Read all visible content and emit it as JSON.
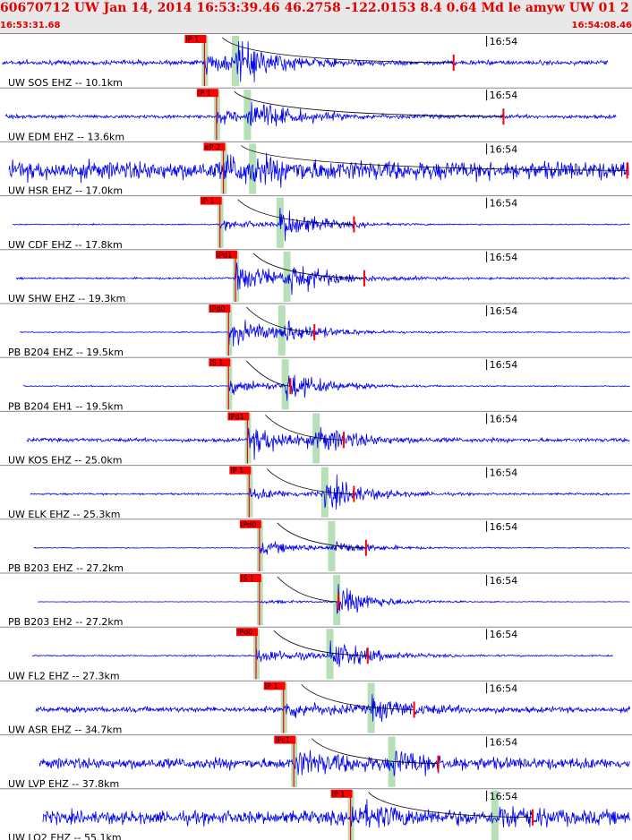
{
  "header": {
    "title": "60670712 UW Jan 14, 2014 16:53:39.46   46.2758 -122.0153  8.4 0.64 Md le amyw UW 01   2",
    "start_time": "16:53:31.68",
    "end_time": "16:54:08.46"
  },
  "colors": {
    "trace": "#0000ee",
    "pick_box": "#ff0000",
    "pick_window": "#b8e0b8",
    "header_text": "#e00000",
    "coda_marker": "#ff0000",
    "curve": "#000000"
  },
  "chart_data": {
    "type": "line",
    "title": "60670712 UW Jan 14, 2014 16:53:39.46   46.2758 -122.0153  8.4 0.64 Md le amyw UW 01   2",
    "x_range": [
      "16:53:31.68",
      "16:54:08.46"
    ],
    "tick_label": "16:54",
    "tick_time_s": 28.32,
    "panels": [
      {
        "label": "UW SOS EHZ -- 10.1km",
        "pick": "IP 1",
        "p_s": 11.9,
        "s_s": 13.7,
        "coda_s": 26.4,
        "amp": 0.9,
        "s_amp": 1.6,
        "trace_end_s": 35.4,
        "noise": 0.25
      },
      {
        "label": "UW EDM EHZ -- 13.6km",
        "pick": "IP 1",
        "p_s": 12.6,
        "s_s": 14.4,
        "coda_s": 29.3,
        "amp": 0.6,
        "s_amp": 1.4,
        "trace_end_s": 35.9,
        "noise": 0.2
      },
      {
        "label": "UW HSR EHZ -- 17.0km",
        "pick": "eP 2",
        "p_s": 13.0,
        "s_s": 14.7,
        "coda_s": 36.5,
        "amp": 1.0,
        "s_amp": 0.2,
        "trace_end_s": 36.6,
        "noise": 1.0
      },
      {
        "label": "UW CDF EHZ -- 17.8km",
        "pick": "IP 1",
        "p_s": 12.8,
        "s_s": 16.3,
        "coda_s": 20.6,
        "amp": 0.5,
        "s_amp": 1.5,
        "trace_end_s": 36.8,
        "noise": 0.06
      },
      {
        "label": "UW SHW EHZ -- 19.3km",
        "pick": "IPd1",
        "p_s": 13.7,
        "s_s": 16.7,
        "coda_s": 21.2,
        "amp": 1.6,
        "s_amp": 1.2,
        "trace_end_s": 36.9,
        "noise": 0.1
      },
      {
        "label": "PB B204 EHZ -- 19.5km",
        "pick": "IPd0",
        "p_s": 13.3,
        "s_s": 16.4,
        "coda_s": 18.3,
        "amp": 1.4,
        "s_amp": 0.8,
        "trace_end_s": 37.0,
        "noise": 0.05
      },
      {
        "label": "PB B204 EH1 -- 19.5km",
        "pick": "IS 1",
        "p_s": 13.3,
        "s_s": 16.6,
        "coda_s": 16.9,
        "amp": 0.8,
        "s_amp": 1.3,
        "trace_end_s": 37.0,
        "noise": 0.06
      },
      {
        "label": "UW KOS EHZ -- 25.0km",
        "pick": "IPd1",
        "p_s": 14.4,
        "s_s": 18.4,
        "coda_s": 20.0,
        "amp": 1.6,
        "s_amp": 1.0,
        "trace_end_s": 37.9,
        "noise": 0.2
      },
      {
        "label": "UW ELK EHZ -- 25.3km",
        "pick": "IP 1",
        "p_s": 14.5,
        "s_s": 18.9,
        "coda_s": 20.6,
        "amp": 0.6,
        "s_amp": 1.5,
        "trace_end_s": 37.3,
        "noise": 0.1
      },
      {
        "label": "PB B203 EHZ -- 27.2km",
        "pick": "IPd0",
        "p_s": 15.1,
        "s_s": 19.3,
        "coda_s": 21.3,
        "amp": 0.7,
        "s_amp": 0.6,
        "trace_end_s": 38.3,
        "noise": 0.05
      },
      {
        "label": "PB B203 EH2 -- 27.2km",
        "pick": "IS 1",
        "p_s": 15.1,
        "s_s": 19.6,
        "coda_s": 19.7,
        "amp": 0.2,
        "s_amp": 1.5,
        "trace_end_s": 38.3,
        "noise": 0.03
      },
      {
        "label": "UW FL2 EHZ -- 27.3km",
        "pick": "IPd0",
        "p_s": 14.9,
        "s_s": 19.2,
        "coda_s": 21.4,
        "amp": 0.8,
        "s_amp": 1.4,
        "trace_end_s": 35.7,
        "noise": 0.08
      },
      {
        "label": "UW ASR EHZ -- 34.7km",
        "pick": "IP 1",
        "p_s": 16.5,
        "s_s": 21.6,
        "coda_s": 24.1,
        "amp": 0.8,
        "s_amp": 1.0,
        "trace_end_s": 39.3,
        "noise": 0.3
      },
      {
        "label": "UW LVP EHZ -- 37.8km",
        "pick": "IPc1",
        "p_s": 17.1,
        "s_s": 22.8,
        "coda_s": 25.5,
        "amp": 1.1,
        "s_amp": 0.9,
        "trace_end_s": 40.5,
        "noise": 0.6
      },
      {
        "label": "UW LO2 EHZ -- 55.1km",
        "pick": "IP 1",
        "p_s": 20.4,
        "s_s": 28.8,
        "coda_s": 31.0,
        "amp": 1.2,
        "s_amp": 1.0,
        "trace_end_s": 43.5,
        "noise": 0.7
      }
    ]
  }
}
